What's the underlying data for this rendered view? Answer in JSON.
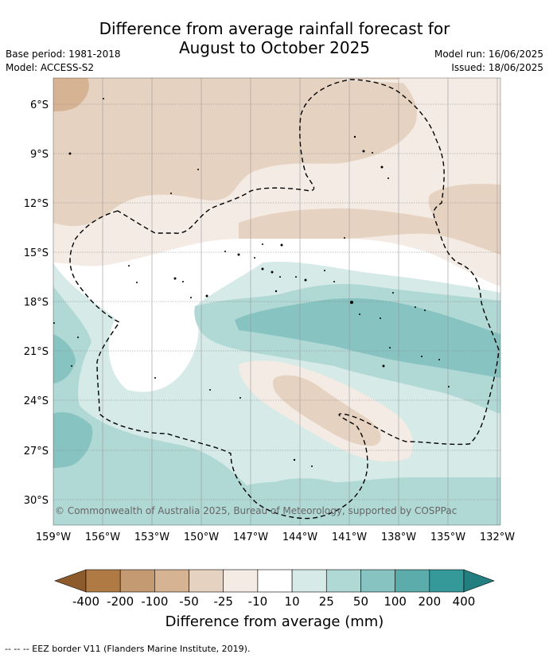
{
  "title_line1": "Difference from average rainfall forecast for",
  "title_line2": "August to October 2025",
  "base_period": "Base period: 1981-2018",
  "model": "Model: ACCESS-S2",
  "model_run": "Model run: 16/06/2025",
  "issued": "Issued: 18/06/2025",
  "copyright": "© Commonwealth of Australia 2025, Bureau of Meteorology, supported by COSPPac",
  "lat_labels": [
    "6°S",
    "9°S",
    "12°S",
    "15°S",
    "18°S",
    "21°S",
    "24°S",
    "27°S",
    "30°S"
  ],
  "lon_labels": [
    "159°W",
    "156°W",
    "153°W",
    "150°W",
    "147°W",
    "144°W",
    "141°W",
    "138°W",
    "135°W",
    "132°W"
  ],
  "colorbar": {
    "ticks": [
      "-400",
      "-200",
      "-100",
      "-50",
      "-25",
      "-10",
      "10",
      "25",
      "50",
      "100",
      "200",
      "400"
    ],
    "colors": [
      "#8c5a2b",
      "#b07a44",
      "#c49a72",
      "#d5b393",
      "#e6d2c0",
      "#f4ebe4",
      "#ffffff",
      "#d6eae7",
      "#b0d8d5",
      "#86c3c1",
      "#5cacab",
      "#35999a",
      "#237e80"
    ],
    "label": "Difference from average (mm)"
  },
  "footer": "--  --  -- EEZ border V11 (Flanders Marine Institute, 2019)."
}
